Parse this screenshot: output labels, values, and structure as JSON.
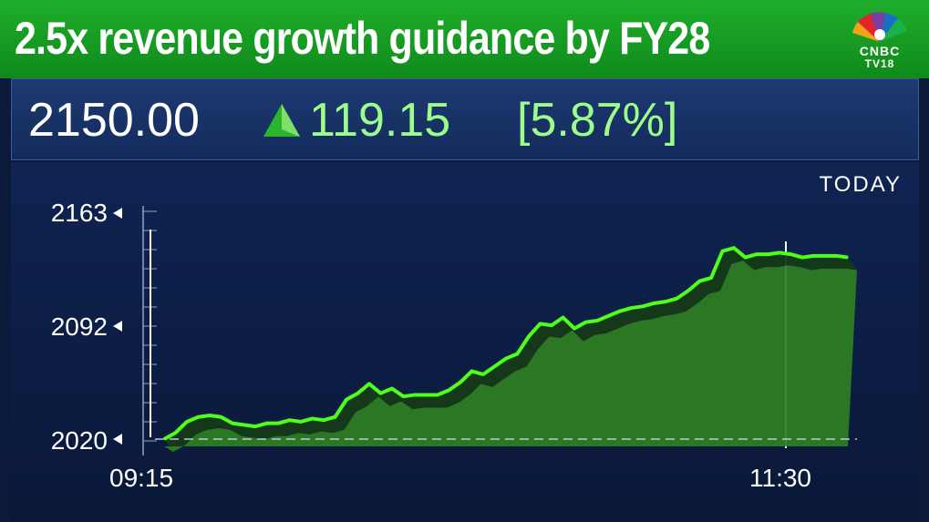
{
  "headline": "2.5x revenue growth guidance by FY28",
  "logo": {
    "line1": "CNBC",
    "line2": "TV18"
  },
  "quote": {
    "price": "2150.00",
    "change": "119.15",
    "change_pct": "[5.87%]",
    "direction": "up-arrow-icon"
  },
  "period": "TODAY",
  "colors": {
    "headline_bg": "#17a024",
    "line": "#4dff1a",
    "fill": "#2e7d21",
    "panel_bg": "#0f2452"
  },
  "chart_data": {
    "type": "area",
    "title": "",
    "xlabel": "",
    "ylabel": "",
    "x_tick_labels": [
      "09:15",
      "11:30"
    ],
    "y_tick_labels": [
      "2163",
      "2092",
      "2020"
    ],
    "ylim": [
      2020,
      2163
    ],
    "grid": false,
    "series": [
      {
        "values": [
          2020,
          2024,
          2031,
          2034,
          2035,
          2034,
          2030,
          2029,
          2028,
          2030,
          2030,
          2032,
          2031,
          2033,
          2032,
          2034,
          2045,
          2049,
          2055,
          2049,
          2052,
          2047,
          2048,
          2048,
          2048,
          2051,
          2056,
          2063,
          2061,
          2066,
          2071,
          2074,
          2085,
          2093,
          2092,
          2097,
          2090,
          2094,
          2095,
          2098,
          2101,
          2103,
          2104,
          2106,
          2107,
          2109,
          2114,
          2120,
          2122,
          2139,
          2141,
          2135,
          2137,
          2137,
          2138,
          2137,
          2135,
          2136,
          2136,
          2136,
          2135
        ]
      }
    ],
    "reference_line": 2020
  }
}
